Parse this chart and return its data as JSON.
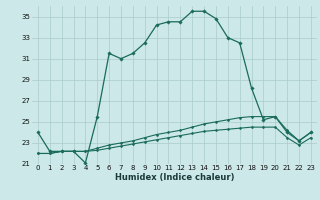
{
  "title": "",
  "xlabel": "Humidex (Indice chaleur)",
  "bg_color": "#cce8e8",
  "grid_color": "#aacccc",
  "line_color": "#1a6b5a",
  "xlim": [
    -0.5,
    23.5
  ],
  "ylim": [
    21,
    36
  ],
  "xticks": [
    0,
    1,
    2,
    3,
    4,
    5,
    6,
    7,
    8,
    9,
    10,
    11,
    12,
    13,
    14,
    15,
    16,
    17,
    18,
    19,
    20,
    21,
    22,
    23
  ],
  "yticks": [
    21,
    23,
    25,
    27,
    29,
    31,
    33,
    35
  ],
  "curve1_x": [
    0,
    1,
    2,
    3,
    4,
    5,
    6,
    7,
    8,
    9,
    10,
    11,
    12,
    13,
    14,
    15,
    16,
    17,
    18,
    19,
    20,
    21,
    22,
    23
  ],
  "curve1_y": [
    24.0,
    22.2,
    22.2,
    22.2,
    21.1,
    25.5,
    31.5,
    31.0,
    31.5,
    32.5,
    34.2,
    34.5,
    34.5,
    35.5,
    35.5,
    34.8,
    33.0,
    32.5,
    28.2,
    25.2,
    25.5,
    24.0,
    23.2,
    24.0
  ],
  "curve2_x": [
    0,
    1,
    2,
    3,
    4,
    5,
    6,
    7,
    8,
    9,
    10,
    11,
    12,
    13,
    14,
    15,
    16,
    17,
    18,
    19,
    20,
    21,
    22,
    23
  ],
  "curve2_y": [
    22.0,
    22.0,
    22.2,
    22.2,
    22.2,
    22.5,
    22.8,
    23.0,
    23.2,
    23.5,
    23.8,
    24.0,
    24.2,
    24.5,
    24.8,
    25.0,
    25.2,
    25.4,
    25.5,
    25.5,
    25.5,
    24.2,
    23.2,
    24.0
  ],
  "curve3_x": [
    0,
    1,
    2,
    3,
    4,
    5,
    6,
    7,
    8,
    9,
    10,
    11,
    12,
    13,
    14,
    15,
    16,
    17,
    18,
    19,
    20,
    21,
    22,
    23
  ],
  "curve3_y": [
    22.0,
    22.0,
    22.2,
    22.2,
    22.2,
    22.3,
    22.5,
    22.7,
    22.9,
    23.1,
    23.3,
    23.5,
    23.7,
    23.9,
    24.1,
    24.2,
    24.3,
    24.4,
    24.5,
    24.5,
    24.5,
    23.5,
    22.8,
    23.5
  ],
  "xlabel_fontsize": 6.0,
  "tick_fontsize": 5.0
}
